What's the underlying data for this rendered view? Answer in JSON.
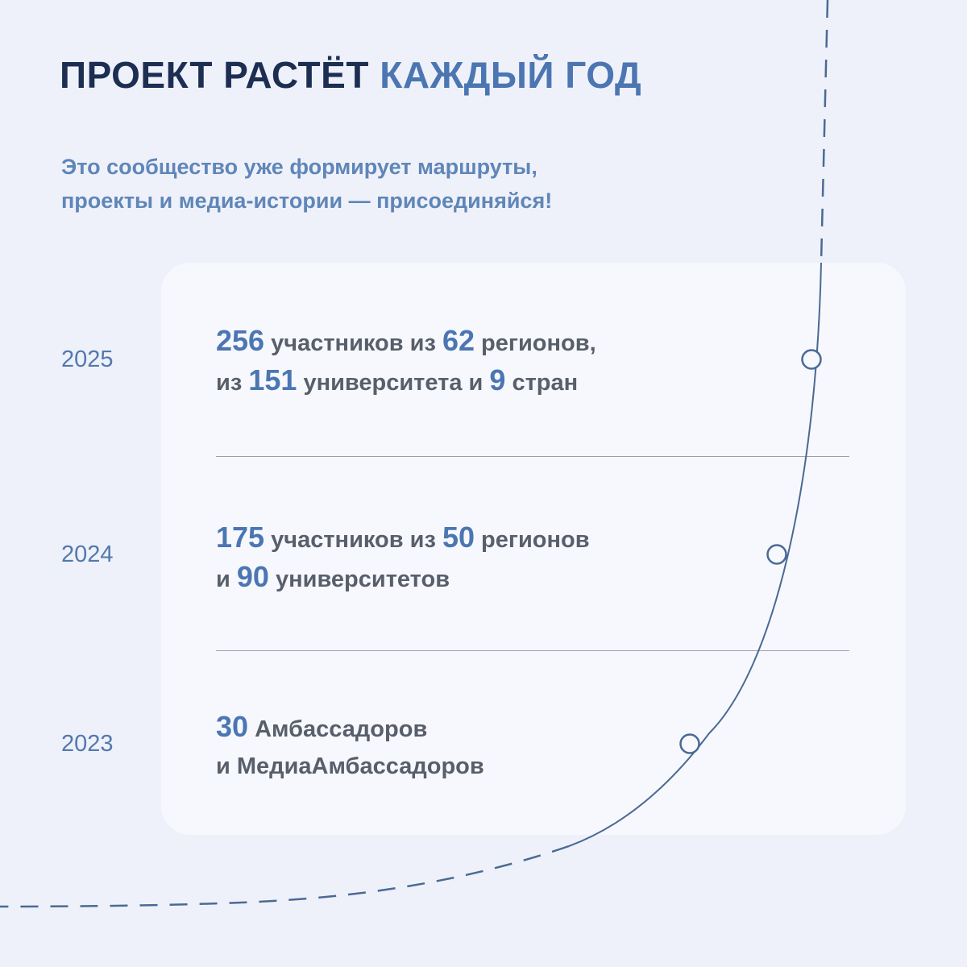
{
  "header": {
    "title_part1": "ПРОЕКТ РАСТЁТ",
    "title_part2": "КАЖДЫЙ ГОД",
    "subtitle_line1": "Это сообщество уже формирует маршруты,",
    "subtitle_line2": "проекты и медиа-истории — присоединяйся!"
  },
  "timeline": [
    {
      "year": "2025",
      "line1": {
        "num1": "256",
        "text1": " участников из ",
        "num2": "62",
        "text2": " регионов,"
      },
      "line2": {
        "text0": "из ",
        "num1": "151",
        "text1": " университета и ",
        "num2": "9",
        "text2": " стран"
      }
    },
    {
      "year": "2024",
      "line1": {
        "num1": "175",
        "text1": " участников из ",
        "num2": "50",
        "text2": " регионов"
      },
      "line2": {
        "text0": "и ",
        "num1": "90",
        "text1": " университетов"
      }
    },
    {
      "year": "2023",
      "line1": {
        "num1": "30",
        "text1": " Амбассадоров"
      },
      "line2": {
        "text0": "и МедиаАмбассадоров"
      }
    }
  ],
  "colors": {
    "background": "#eff1fa",
    "card": "#f7f8fd",
    "title_dark": "#1c2e52",
    "accent": "#4b76b2",
    "body_text": "#585f6b",
    "curve": "#4a6a94"
  }
}
